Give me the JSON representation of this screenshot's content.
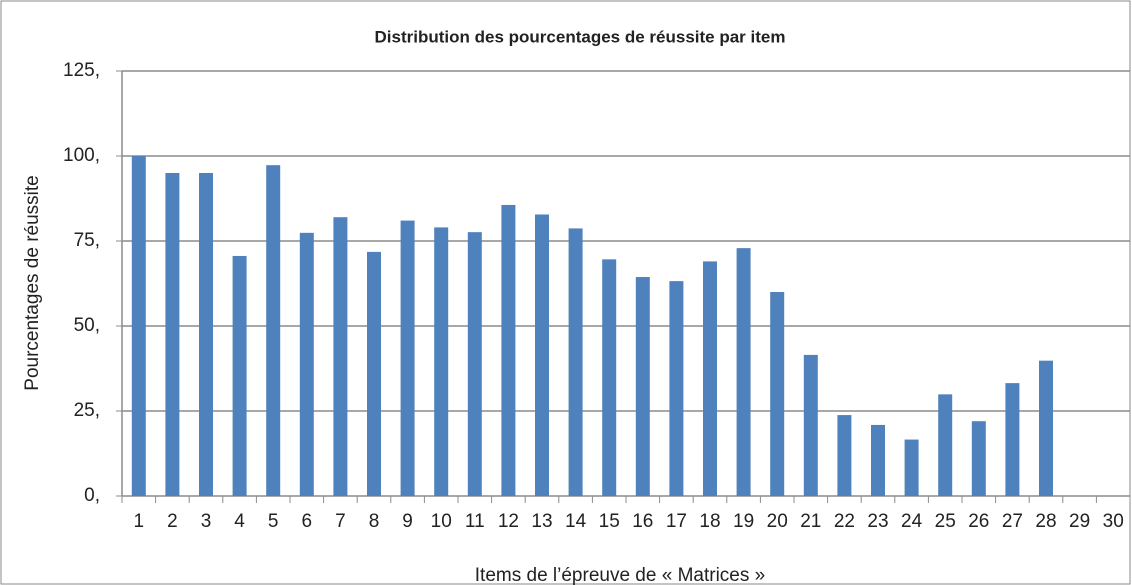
{
  "chart_data": {
    "type": "bar",
    "title": "Distribution des pourcentages de réussite par item",
    "x_label": "Items de l’épreuve de « Matrices »",
    "y_label": "Pourcentages de réussite",
    "categories": [
      "1",
      "2",
      "3",
      "4",
      "5",
      "6",
      "7",
      "8",
      "9",
      "10",
      "11",
      "12",
      "13",
      "14",
      "15",
      "16",
      "17",
      "18",
      "19",
      "20",
      "21",
      "22",
      "23",
      "24",
      "25",
      "26",
      "27",
      "28",
      "29",
      "30"
    ],
    "values": [
      100,
      95,
      95,
      70.6,
      97.3,
      77.4,
      82,
      71.8,
      81,
      79,
      77.6,
      85.6,
      82.8,
      78.7,
      69.6,
      64.4,
      63.2,
      69,
      72.9,
      60,
      41.5,
      23.8,
      20.9,
      16.6,
      29.9,
      22,
      33.2,
      39.8,
      null,
      null
    ],
    "color": "#4f81bd",
    "ylim": [
      0,
      125
    ],
    "yticks": [
      {
        "value": 0,
        "label": "0,"
      },
      {
        "value": 25,
        "label": "25,"
      },
      {
        "value": 50,
        "label": "50,"
      },
      {
        "value": 75,
        "label": "75,"
      },
      {
        "value": 100,
        "label": "100,"
      },
      {
        "value": 125,
        "label": "125,"
      }
    ],
    "grid": true
  }
}
